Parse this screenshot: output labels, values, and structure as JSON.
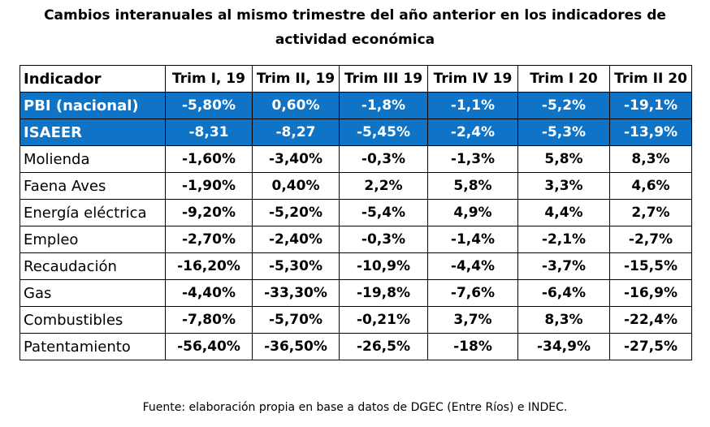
{
  "title_line1": "Cambios interanuales al mismo trimestre del año anterior en los indicadores de",
  "title_line2": "actividad económica",
  "headers": [
    "Indicador",
    "Trim I, 19",
    "Trim II, 19",
    "Trim III 19",
    "Trim IV 19",
    "Trim I 20",
    "Trim II 20"
  ],
  "highlight_color": "#0f74c6",
  "rows": [
    {
      "label": "PBI (nacional)",
      "values": [
        "-5,80%",
        "0,60%",
        "-1,8%",
        "-1,1%",
        "-5,2%",
        "-19,1%"
      ],
      "highlight": true
    },
    {
      "label": "ISAEER",
      "values": [
        "-8,31",
        "-8,27",
        "-5,45%",
        "-2,4%",
        "-5,3%",
        "-13,9%"
      ],
      "highlight": true
    },
    {
      "label": "Molienda",
      "values": [
        "-1,60%",
        "-3,40%",
        "-0,3%",
        "-1,3%",
        "5,8%",
        "8,3%"
      ],
      "highlight": false
    },
    {
      "label": "Faena Aves",
      "values": [
        "-1,90%",
        "0,40%",
        "2,2%",
        "5,8%",
        "3,3%",
        "4,6%"
      ],
      "highlight": false
    },
    {
      "label": "Energía eléctrica",
      "values": [
        "-9,20%",
        "-5,20%",
        "-5,4%",
        "4,9%",
        "4,4%",
        "2,7%"
      ],
      "highlight": false
    },
    {
      "label": "Empleo",
      "values": [
        "-2,70%",
        "-2,40%",
        "-0,3%",
        "-1,4%",
        "-2,1%",
        "-2,7%"
      ],
      "highlight": false
    },
    {
      "label": "Recaudación",
      "values": [
        "-16,20%",
        "-5,30%",
        "-10,9%",
        "-4,4%",
        "-3,7%",
        "-15,5%"
      ],
      "highlight": false
    },
    {
      "label": "Gas",
      "values": [
        "-4,40%",
        "-33,30%",
        "-19,8%",
        "-7,6%",
        "-6,4%",
        "-16,9%"
      ],
      "highlight": false
    },
    {
      "label": "Combustibles",
      "values": [
        "-7,80%",
        "-5,70%",
        "-0,21%",
        "3,7%",
        "8,3%",
        "-22,4%"
      ],
      "highlight": false
    },
    {
      "label": "Patentamiento",
      "values": [
        "-56,40%",
        "-36,50%",
        "-26,5%",
        "-18%",
        "-34,9%",
        "-27,5%"
      ],
      "highlight": false
    }
  ],
  "source": "Fuente: elaboración propia en base a datos de DGEC (Entre Ríos) e INDEC."
}
